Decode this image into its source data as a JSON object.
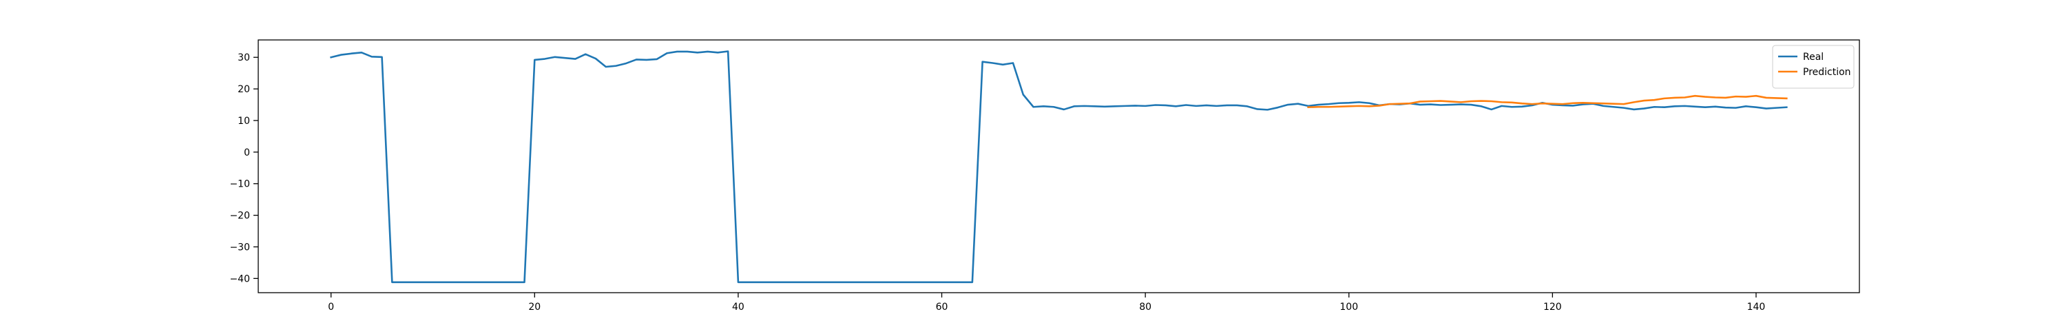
{
  "chart_data": {
    "type": "line",
    "title": "",
    "xlabel": "",
    "ylabel": "",
    "xlim": [
      -7.15,
      150.15
    ],
    "ylim": [
      -44.5,
      35.5
    ],
    "x_ticks": [
      0,
      20,
      40,
      60,
      80,
      100,
      120,
      140
    ],
    "y_ticks": [
      -40,
      -30,
      -20,
      -10,
      0,
      10,
      20,
      30
    ],
    "grid": false,
    "legend_position": "top-right",
    "series": [
      {
        "name": "Real",
        "color": "#1f77b4",
        "x_start": 0,
        "values": [
          30.0,
          30.8,
          31.2,
          31.5,
          30.2,
          30.1,
          -41.2,
          -41.2,
          -41.2,
          -41.2,
          -41.2,
          -41.2,
          -41.2,
          -41.2,
          -41.2,
          -41.2,
          -41.2,
          -41.2,
          -41.2,
          -41.2,
          29.2,
          29.5,
          30.1,
          29.8,
          29.5,
          31.0,
          29.6,
          27.0,
          27.3,
          28.1,
          29.3,
          29.2,
          29.4,
          31.3,
          31.8,
          31.8,
          31.5,
          31.8,
          31.5,
          31.9,
          -41.2,
          -41.2,
          -41.2,
          -41.2,
          -41.2,
          -41.2,
          -41.2,
          -41.2,
          -41.2,
          -41.2,
          -41.2,
          -41.2,
          -41.2,
          -41.2,
          -41.2,
          -41.2,
          -41.2,
          -41.2,
          -41.2,
          -41.2,
          -41.2,
          -41.2,
          -41.2,
          -41.2,
          28.6,
          28.2,
          27.7,
          28.2,
          18.2,
          14.3,
          14.5,
          14.3,
          13.5,
          14.5,
          14.6,
          14.5,
          14.4,
          14.5,
          14.6,
          14.7,
          14.6,
          14.9,
          14.8,
          14.5,
          14.9,
          14.6,
          14.8,
          14.6,
          14.8,
          14.8,
          14.5,
          13.6,
          13.4,
          14.1,
          15.0,
          15.3,
          14.6,
          15.0,
          15.2,
          15.5,
          15.6,
          15.8,
          15.5,
          14.8,
          15.2,
          15.1,
          15.4,
          15.0,
          15.1,
          14.9,
          15.0,
          15.1,
          15.0,
          14.5,
          13.5,
          14.6,
          14.3,
          14.4,
          14.8,
          15.6,
          15.0,
          14.8,
          14.7,
          15.1,
          15.3,
          14.6,
          14.3,
          14.0,
          13.5,
          13.8,
          14.3,
          14.2,
          14.5,
          14.6,
          14.4,
          14.2,
          14.4,
          14.1,
          14.0,
          14.5,
          14.2,
          13.8,
          14.0,
          14.2
        ]
      },
      {
        "name": "Prediction",
        "color": "#ff7f0e",
        "x_start": 96,
        "values": [
          14.2,
          14.3,
          14.3,
          14.4,
          14.5,
          14.6,
          14.5,
          14.7,
          15.2,
          15.3,
          15.4,
          16.0,
          16.1,
          16.2,
          16.0,
          15.8,
          16.1,
          16.2,
          16.1,
          15.8,
          15.7,
          15.4,
          15.2,
          15.4,
          15.3,
          15.2,
          15.5,
          15.6,
          15.5,
          15.4,
          15.3,
          15.2,
          15.8,
          16.3,
          16.5,
          17.0,
          17.2,
          17.3,
          17.8,
          17.5,
          17.3,
          17.2,
          17.6,
          17.5,
          17.8,
          17.2,
          17.1,
          17.0
        ]
      }
    ]
  }
}
